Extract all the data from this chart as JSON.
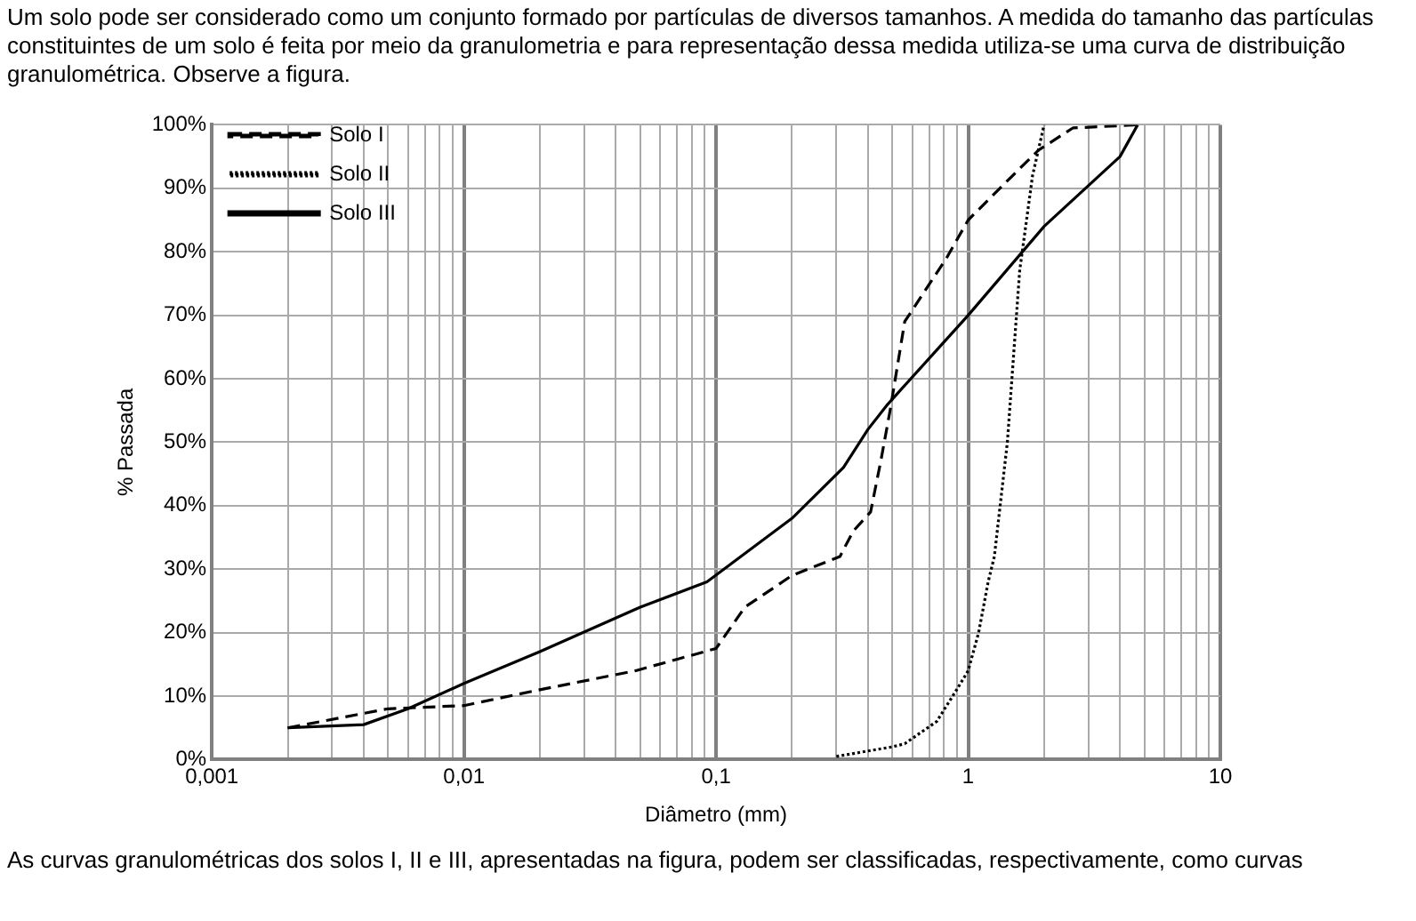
{
  "chart_data": {
    "type": "line",
    "xlabel": "Diâmetro (mm)",
    "ylabel": "% Passada",
    "log": "x",
    "annotations": [
      "Um solo pode ser considerado como um conjunto formado por partículas de diversos tamanhos. A medida do tamanho das partículas constituintes de um solo é feita por meio da granulometria e para representação dessa medida utiliza-se uma curva de distribuição granulométrica. Observe a figura.",
      "As curvas granulométricas dos solos I, II e III, apresentadas na figura, podem ser classificadas, respectivamente, como curvas"
    ],
    "xlim": [
      0.001,
      10
    ],
    "ylim": [
      0,
      100
    ],
    "xticks": [
      {
        "value": 0.001,
        "label": "0,001"
      },
      {
        "value": 0.002,
        "label": null
      },
      {
        "value": 0.003,
        "label": null
      },
      {
        "value": 0.004,
        "label": null
      },
      {
        "value": 0.005,
        "label": null
      },
      {
        "value": 0.006,
        "label": null
      },
      {
        "value": 0.007,
        "label": null
      },
      {
        "value": 0.008,
        "label": null
      },
      {
        "value": 0.009,
        "label": null
      },
      {
        "value": 0.01,
        "label": "0,01"
      },
      {
        "value": 0.02,
        "label": null
      },
      {
        "value": 0.03,
        "label": null
      },
      {
        "value": 0.04,
        "label": null
      },
      {
        "value": 0.05,
        "label": null
      },
      {
        "value": 0.06,
        "label": null
      },
      {
        "value": 0.07,
        "label": null
      },
      {
        "value": 0.08,
        "label": null
      },
      {
        "value": 0.09,
        "label": null
      },
      {
        "value": 0.1,
        "label": "0,1"
      },
      {
        "value": 0.2,
        "label": null
      },
      {
        "value": 0.3,
        "label": null
      },
      {
        "value": 0.4,
        "label": null
      },
      {
        "value": 0.5,
        "label": null
      },
      {
        "value": 0.6,
        "label": null
      },
      {
        "value": 0.7,
        "label": null
      },
      {
        "value": 0.8,
        "label": null
      },
      {
        "value": 0.9,
        "label": null
      },
      {
        "value": 1,
        "label": "1"
      },
      {
        "value": 2,
        "label": null
      },
      {
        "value": 3,
        "label": null
      },
      {
        "value": 4,
        "label": null
      },
      {
        "value": 5,
        "label": null
      },
      {
        "value": 6,
        "label": null
      },
      {
        "value": 7,
        "label": null
      },
      {
        "value": 8,
        "label": null
      },
      {
        "value": 9,
        "label": null
      },
      {
        "value": 10,
        "label": "10"
      }
    ],
    "yticks": [
      {
        "value": 0,
        "label": "0%"
      },
      {
        "value": 10,
        "label": "10%"
      },
      {
        "value": 20,
        "label": "20%"
      },
      {
        "value": 30,
        "label": "30%"
      },
      {
        "value": 40,
        "label": "40%"
      },
      {
        "value": 50,
        "label": "50%"
      },
      {
        "value": 60,
        "label": "60%"
      },
      {
        "value": 70,
        "label": "70%"
      },
      {
        "value": 80,
        "label": "80%"
      },
      {
        "value": 90,
        "label": "90%"
      },
      {
        "value": 100,
        "label": "100%"
      }
    ],
    "grid": true,
    "legend": "top left",
    "marker": "none",
    "series": [
      {
        "name": "Solo I",
        "color": "#000000",
        "line_style": "dashed",
        "x": [
          0.002,
          0.005,
          0.01,
          0.02,
          0.048,
          0.1,
          0.13,
          0.2,
          0.31,
          0.35,
          0.41,
          0.45,
          0.49,
          0.56,
          0.82,
          1,
          1.5,
          1.9,
          2.6,
          4.7
        ],
        "values": [
          5,
          8,
          8.5,
          11,
          14,
          17.5,
          24,
          29,
          32,
          36,
          39,
          47,
          55,
          69,
          79,
          85,
          92,
          96,
          99.5,
          100
        ]
      },
      {
        "name": "Solo II",
        "color": "#000000",
        "line_style": "dotted",
        "x": [
          0.3,
          0.5,
          0.56,
          0.75,
          0.9,
          1,
          1.1,
          1.2,
          1.27,
          1.43,
          1.6,
          1.8,
          2
        ],
        "values": [
          0.5,
          2,
          2.5,
          6,
          11,
          14,
          20,
          28,
          32,
          50,
          77,
          92,
          100
        ]
      },
      {
        "name": "Solo III",
        "color": "#000000",
        "line_style": "solid",
        "x": [
          0.002,
          0.004,
          0.006,
          0.01,
          0.02,
          0.05,
          0.092,
          0.2,
          0.32,
          0.4,
          0.48,
          1,
          2,
          4,
          4.7
        ],
        "values": [
          5,
          5.5,
          8,
          12,
          17,
          24,
          28,
          38,
          46,
          52,
          56,
          70,
          84,
          95,
          100
        ]
      }
    ]
  }
}
